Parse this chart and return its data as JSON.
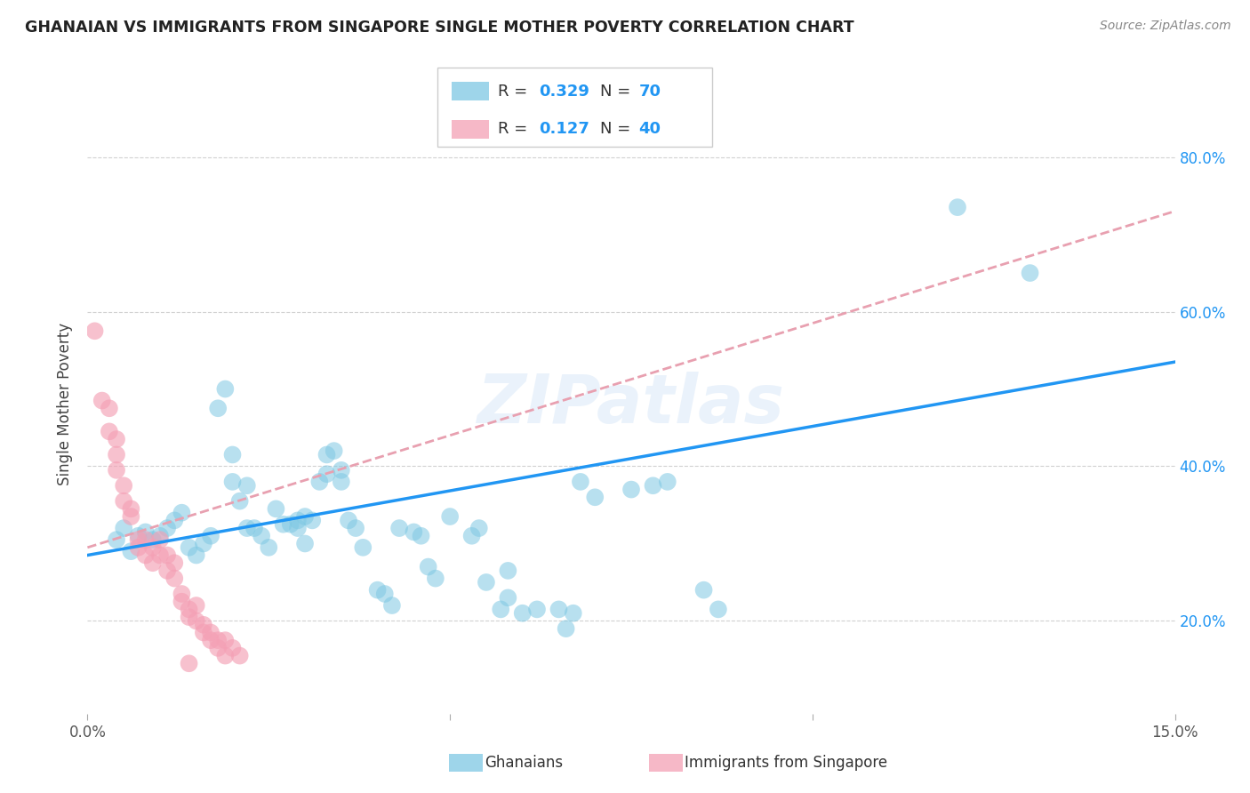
{
  "title": "GHANAIAN VS IMMIGRANTS FROM SINGAPORE SINGLE MOTHER POVERTY CORRELATION CHART",
  "source": "Source: ZipAtlas.com",
  "ylabel": "Single Mother Poverty",
  "y_ticks": [
    0.2,
    0.4,
    0.6,
    0.8
  ],
  "y_tick_labels": [
    "20.0%",
    "40.0%",
    "60.0%",
    "80.0%"
  ],
  "x_lim": [
    0.0,
    0.15
  ],
  "y_lim": [
    0.08,
    0.88
  ],
  "legend_R_blue": "0.329",
  "legend_N_blue": "70",
  "legend_R_pink": "0.127",
  "legend_N_pink": "40",
  "watermark": "ZIPatlas",
  "blue_color": "#7ec8e3",
  "pink_color": "#f4a0b5",
  "line_blue": "#2196F3",
  "line_pink": "#e8a0b0",
  "blue_scatter": [
    [
      0.004,
      0.305
    ],
    [
      0.005,
      0.32
    ],
    [
      0.006,
      0.29
    ],
    [
      0.007,
      0.31
    ],
    [
      0.008,
      0.315
    ],
    [
      0.009,
      0.305
    ],
    [
      0.01,
      0.31
    ],
    [
      0.011,
      0.32
    ],
    [
      0.012,
      0.33
    ],
    [
      0.013,
      0.34
    ],
    [
      0.014,
      0.295
    ],
    [
      0.015,
      0.285
    ],
    [
      0.016,
      0.3
    ],
    [
      0.017,
      0.31
    ],
    [
      0.018,
      0.475
    ],
    [
      0.019,
      0.5
    ],
    [
      0.02,
      0.415
    ],
    [
      0.02,
      0.38
    ],
    [
      0.021,
      0.355
    ],
    [
      0.022,
      0.375
    ],
    [
      0.022,
      0.32
    ],
    [
      0.023,
      0.32
    ],
    [
      0.024,
      0.31
    ],
    [
      0.025,
      0.295
    ],
    [
      0.026,
      0.345
    ],
    [
      0.027,
      0.325
    ],
    [
      0.028,
      0.325
    ],
    [
      0.029,
      0.33
    ],
    [
      0.029,
      0.32
    ],
    [
      0.03,
      0.3
    ],
    [
      0.03,
      0.335
    ],
    [
      0.031,
      0.33
    ],
    [
      0.032,
      0.38
    ],
    [
      0.033,
      0.39
    ],
    [
      0.033,
      0.415
    ],
    [
      0.034,
      0.42
    ],
    [
      0.035,
      0.395
    ],
    [
      0.035,
      0.38
    ],
    [
      0.036,
      0.33
    ],
    [
      0.037,
      0.32
    ],
    [
      0.038,
      0.295
    ],
    [
      0.04,
      0.24
    ],
    [
      0.041,
      0.235
    ],
    [
      0.042,
      0.22
    ],
    [
      0.043,
      0.32
    ],
    [
      0.045,
      0.315
    ],
    [
      0.046,
      0.31
    ],
    [
      0.047,
      0.27
    ],
    [
      0.048,
      0.255
    ],
    [
      0.05,
      0.335
    ],
    [
      0.053,
      0.31
    ],
    [
      0.054,
      0.32
    ],
    [
      0.055,
      0.25
    ],
    [
      0.057,
      0.215
    ],
    [
      0.058,
      0.265
    ],
    [
      0.058,
      0.23
    ],
    [
      0.06,
      0.21
    ],
    [
      0.062,
      0.215
    ],
    [
      0.065,
      0.215
    ],
    [
      0.066,
      0.19
    ],
    [
      0.067,
      0.21
    ],
    [
      0.068,
      0.38
    ],
    [
      0.07,
      0.36
    ],
    [
      0.075,
      0.37
    ],
    [
      0.078,
      0.375
    ],
    [
      0.08,
      0.38
    ],
    [
      0.085,
      0.24
    ],
    [
      0.087,
      0.215
    ],
    [
      0.12,
      0.735
    ],
    [
      0.13,
      0.65
    ]
  ],
  "pink_scatter": [
    [
      0.001,
      0.575
    ],
    [
      0.002,
      0.485
    ],
    [
      0.003,
      0.445
    ],
    [
      0.003,
      0.475
    ],
    [
      0.004,
      0.395
    ],
    [
      0.004,
      0.415
    ],
    [
      0.004,
      0.435
    ],
    [
      0.005,
      0.355
    ],
    [
      0.005,
      0.375
    ],
    [
      0.006,
      0.345
    ],
    [
      0.006,
      0.335
    ],
    [
      0.007,
      0.295
    ],
    [
      0.007,
      0.305
    ],
    [
      0.008,
      0.305
    ],
    [
      0.008,
      0.285
    ],
    [
      0.009,
      0.295
    ],
    [
      0.009,
      0.275
    ],
    [
      0.01,
      0.305
    ],
    [
      0.01,
      0.285
    ],
    [
      0.011,
      0.285
    ],
    [
      0.011,
      0.265
    ],
    [
      0.012,
      0.275
    ],
    [
      0.012,
      0.255
    ],
    [
      0.013,
      0.225
    ],
    [
      0.013,
      0.235
    ],
    [
      0.014,
      0.215
    ],
    [
      0.014,
      0.205
    ],
    [
      0.015,
      0.22
    ],
    [
      0.015,
      0.2
    ],
    [
      0.016,
      0.195
    ],
    [
      0.016,
      0.185
    ],
    [
      0.017,
      0.185
    ],
    [
      0.017,
      0.175
    ],
    [
      0.018,
      0.175
    ],
    [
      0.018,
      0.165
    ],
    [
      0.019,
      0.175
    ],
    [
      0.019,
      0.155
    ],
    [
      0.02,
      0.165
    ],
    [
      0.021,
      0.155
    ],
    [
      0.014,
      0.145
    ]
  ]
}
